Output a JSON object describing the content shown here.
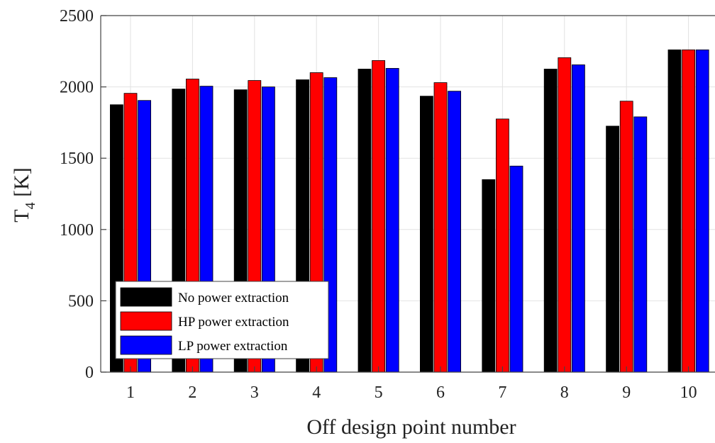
{
  "chart_data": {
    "type": "bar",
    "categories": [
      "1",
      "2",
      "3",
      "4",
      "5",
      "6",
      "7",
      "8",
      "9",
      "10"
    ],
    "series": [
      {
        "name": "No power extraction",
        "color": "#000000",
        "values": [
          1875,
          1985,
          1980,
          2050,
          2125,
          1935,
          1350,
          2125,
          1725,
          2260
        ]
      },
      {
        "name": "HP power extraction",
        "color": "#ff0000",
        "values": [
          1955,
          2055,
          2045,
          2100,
          2185,
          2030,
          1775,
          2205,
          1900,
          2260
        ]
      },
      {
        "name": "LP power extraction",
        "color": "#0000ff",
        "values": [
          1905,
          2005,
          2000,
          2065,
          2130,
          1970,
          1445,
          2155,
          1790,
          2260
        ]
      }
    ],
    "yticks": [
      "0",
      "500",
      "1000",
      "1500",
      "2000",
      "2500"
    ],
    "ylim": [
      0,
      2500
    ],
    "xlabel": "Off design point number",
    "ylabel_main": "T",
    "ylabel_sub": "4",
    "ylabel_rest": " [K]",
    "grid": true,
    "legend_position": "lower-left"
  }
}
